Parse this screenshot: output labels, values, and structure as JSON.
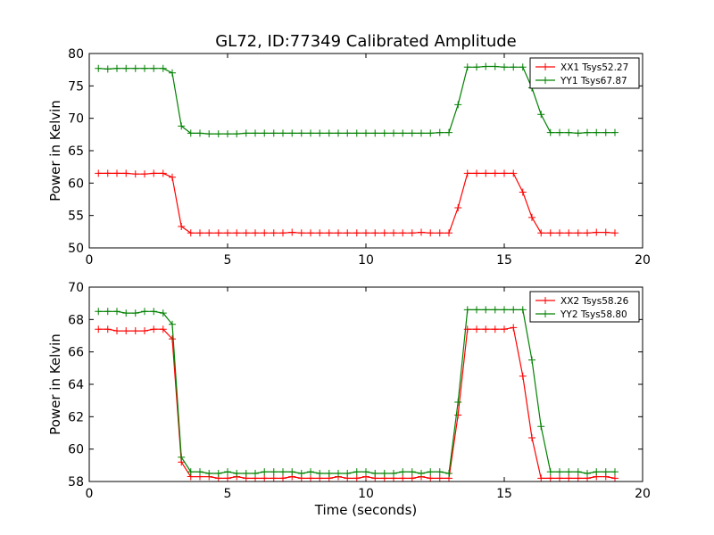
{
  "chart_data": [
    {
      "type": "line",
      "title": "GL72, ID:77349 Calibrated Amplitude",
      "xlabel": "",
      "ylabel": "Power in Kelvin",
      "xlim": [
        0,
        20
      ],
      "ylim": [
        50,
        80
      ],
      "xticks": [
        0,
        5,
        10,
        15,
        20
      ],
      "yticks": [
        50,
        55,
        60,
        65,
        70,
        75,
        80
      ],
      "grid": false,
      "legend_position": "top-right",
      "x": [
        0.33,
        0.67,
        1.0,
        1.33,
        1.67,
        2.0,
        2.33,
        2.67,
        3.0,
        3.33,
        3.67,
        4.0,
        4.33,
        4.67,
        5.0,
        5.33,
        5.67,
        6.0,
        6.33,
        6.67,
        7.0,
        7.33,
        7.67,
        8.0,
        8.33,
        8.67,
        9.0,
        9.33,
        9.67,
        10.0,
        10.33,
        10.67,
        11.0,
        11.33,
        11.67,
        12.0,
        12.33,
        12.67,
        13.0,
        13.33,
        13.67,
        14.0,
        14.33,
        14.67,
        15.0,
        15.33,
        15.67,
        16.0,
        16.33,
        16.67,
        17.0,
        17.33,
        17.67,
        18.0,
        18.33,
        18.67,
        19.0
      ],
      "series": [
        {
          "name": "XX1 Tsys52.27",
          "color": "#ff0000",
          "values": [
            61.5,
            61.5,
            61.5,
            61.5,
            61.4,
            61.4,
            61.5,
            61.5,
            60.9,
            53.3,
            52.3,
            52.3,
            52.3,
            52.3,
            52.3,
            52.3,
            52.3,
            52.3,
            52.3,
            52.3,
            52.3,
            52.4,
            52.3,
            52.3,
            52.3,
            52.3,
            52.3,
            52.3,
            52.3,
            52.3,
            52.3,
            52.3,
            52.3,
            52.3,
            52.3,
            52.4,
            52.3,
            52.3,
            52.3,
            56.2,
            61.5,
            61.5,
            61.5,
            61.5,
            61.5,
            61.5,
            58.6,
            54.7,
            52.3,
            52.3,
            52.3,
            52.3,
            52.3,
            52.3,
            52.4,
            52.4,
            52.3
          ]
        },
        {
          "name": "YY1 Tsys67.87",
          "color": "#008000",
          "values": [
            77.7,
            77.6,
            77.7,
            77.7,
            77.7,
            77.7,
            77.7,
            77.7,
            77.0,
            68.8,
            67.7,
            67.7,
            67.6,
            67.6,
            67.6,
            67.6,
            67.7,
            67.7,
            67.7,
            67.7,
            67.7,
            67.7,
            67.7,
            67.7,
            67.7,
            67.7,
            67.7,
            67.7,
            67.7,
            67.7,
            67.7,
            67.7,
            67.7,
            67.7,
            67.7,
            67.7,
            67.7,
            67.8,
            67.8,
            72.1,
            77.9,
            77.9,
            78.0,
            78.0,
            77.9,
            77.9,
            77.9,
            74.7,
            70.6,
            67.8,
            67.8,
            67.8,
            67.7,
            67.8,
            67.8,
            67.8,
            67.8
          ]
        }
      ]
    },
    {
      "type": "line",
      "title": "",
      "xlabel": "Time (seconds)",
      "ylabel": "Power in Kelvin",
      "xlim": [
        0,
        20
      ],
      "ylim": [
        58,
        70
      ],
      "xticks": [
        0,
        5,
        10,
        15,
        20
      ],
      "yticks": [
        58,
        60,
        62,
        64,
        66,
        68,
        70
      ],
      "grid": false,
      "legend_position": "top-right",
      "x": [
        0.33,
        0.67,
        1.0,
        1.33,
        1.67,
        2.0,
        2.33,
        2.67,
        3.0,
        3.33,
        3.67,
        4.0,
        4.33,
        4.67,
        5.0,
        5.33,
        5.67,
        6.0,
        6.33,
        6.67,
        7.0,
        7.33,
        7.67,
        8.0,
        8.33,
        8.67,
        9.0,
        9.33,
        9.67,
        10.0,
        10.33,
        10.67,
        11.0,
        11.33,
        11.67,
        12.0,
        12.33,
        12.67,
        13.0,
        13.33,
        13.67,
        14.0,
        14.33,
        14.67,
        15.0,
        15.33,
        15.67,
        16.0,
        16.33,
        16.67,
        17.0,
        17.33,
        17.67,
        18.0,
        18.33,
        18.67,
        19.0
      ],
      "series": [
        {
          "name": "XX2 Tsys58.26",
          "color": "#ff0000",
          "values": [
            67.4,
            67.4,
            67.3,
            67.3,
            67.3,
            67.3,
            67.4,
            67.4,
            66.8,
            59.2,
            58.3,
            58.3,
            58.3,
            58.2,
            58.2,
            58.3,
            58.2,
            58.2,
            58.2,
            58.2,
            58.2,
            58.3,
            58.2,
            58.2,
            58.2,
            58.2,
            58.3,
            58.2,
            58.2,
            58.3,
            58.2,
            58.2,
            58.2,
            58.2,
            58.2,
            58.3,
            58.2,
            58.2,
            58.2,
            62.1,
            67.4,
            67.4,
            67.4,
            67.4,
            67.4,
            67.5,
            64.5,
            60.7,
            58.2,
            58.2,
            58.2,
            58.2,
            58.2,
            58.2,
            58.3,
            58.3,
            58.2
          ]
        },
        {
          "name": "YY2 Tsys58.80",
          "color": "#008000",
          "values": [
            68.5,
            68.5,
            68.5,
            68.4,
            68.4,
            68.5,
            68.5,
            68.4,
            67.7,
            59.5,
            58.6,
            58.6,
            58.5,
            58.5,
            58.6,
            58.5,
            58.5,
            58.5,
            58.6,
            58.6,
            58.6,
            58.6,
            58.5,
            58.6,
            58.5,
            58.5,
            58.5,
            58.5,
            58.6,
            58.6,
            58.5,
            58.5,
            58.5,
            58.6,
            58.6,
            58.5,
            58.6,
            58.6,
            58.5,
            62.9,
            68.6,
            68.6,
            68.6,
            68.6,
            68.6,
            68.6,
            68.6,
            65.5,
            61.4,
            58.6,
            58.6,
            58.6,
            58.6,
            58.5,
            58.6,
            58.6,
            58.6
          ]
        }
      ]
    }
  ]
}
